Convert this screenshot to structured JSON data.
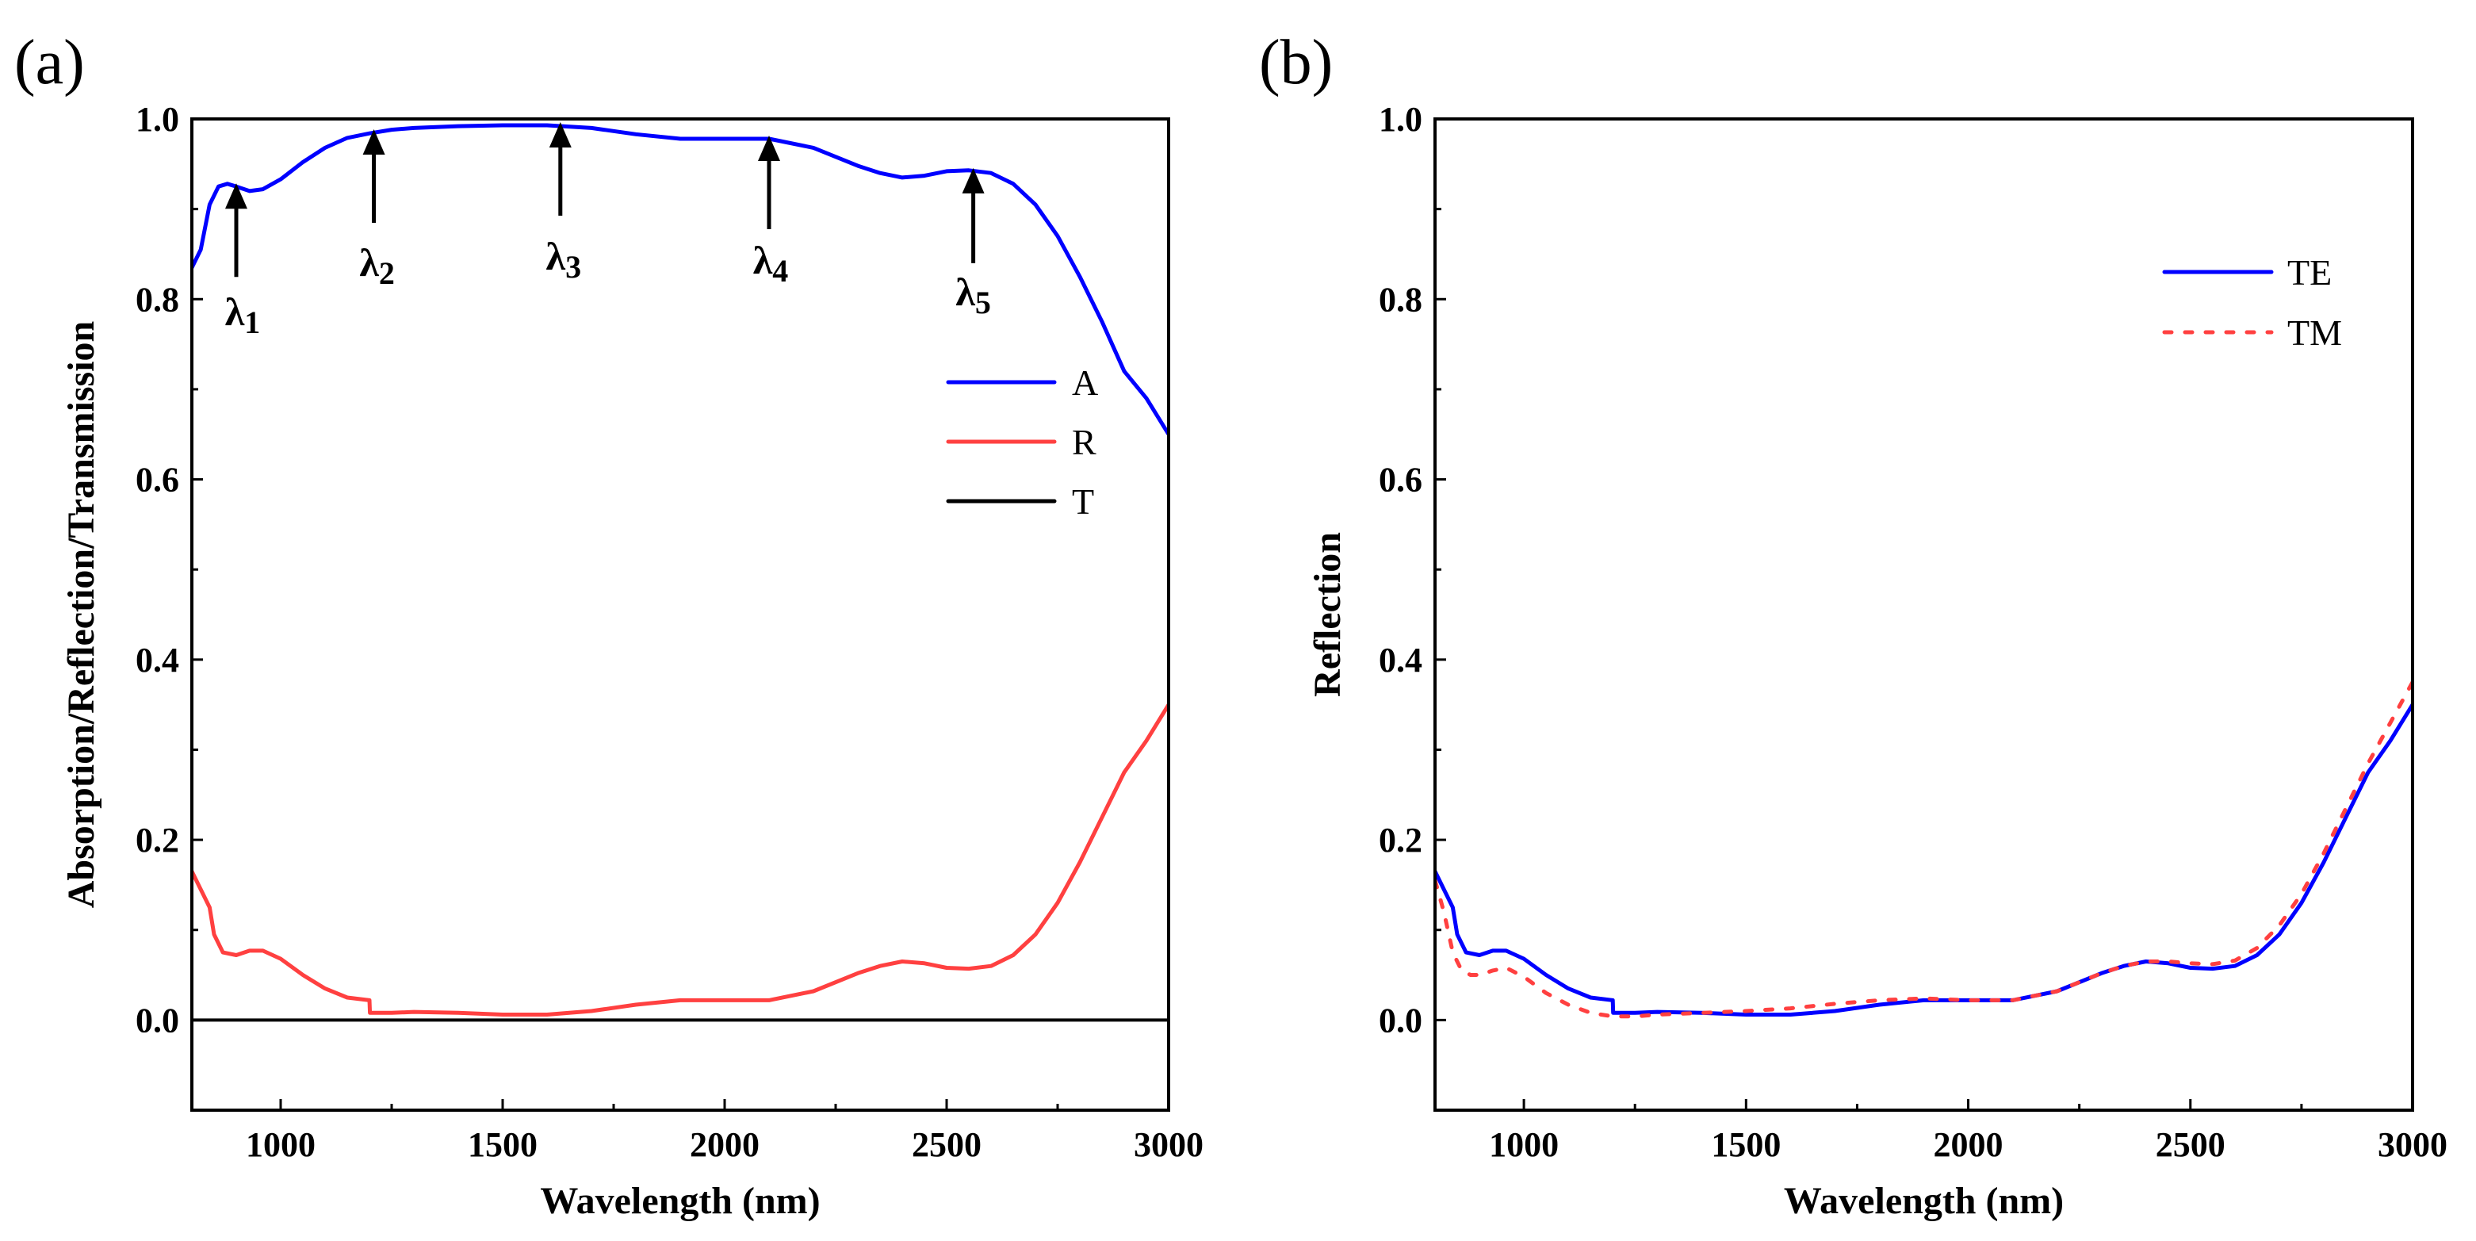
{
  "chart_data": [
    {
      "panel_label": "(a)",
      "type": "line",
      "xlabel": "Wavelength (nm)",
      "ylabel": "Absorption/Reflection/Transmission",
      "xlim": [
        800,
        3000
      ],
      "ylim": [
        -0.1,
        1.0
      ],
      "xticks": [
        1000,
        1500,
        2000,
        2500,
        3000
      ],
      "xtick_labels": [
        "1000",
        "1500",
        "2000",
        "2500",
        "3000"
      ],
      "yticks": [
        0.0,
        0.2,
        0.4,
        0.6,
        0.8,
        1.0
      ],
      "ytick_labels": [
        "0.0",
        "0.2",
        "0.4",
        "0.6",
        "0.8",
        "1.0"
      ],
      "grid": false,
      "legend_position": "center-right",
      "series": [
        {
          "name": "A",
          "color": "#0000ff",
          "style": "solid",
          "x": [
            800,
            820,
            840,
            860,
            880,
            900,
            930,
            960,
            1000,
            1050,
            1100,
            1150,
            1200,
            1250,
            1300,
            1400,
            1500,
            1600,
            1700,
            1800,
            1900,
            2000,
            2100,
            2200,
            2300,
            2350,
            2400,
            2450,
            2500,
            2550,
            2600,
            2650,
            2700,
            2750,
            2800,
            2850,
            2900,
            2950,
            3000
          ],
          "y": [
            0.835,
            0.855,
            0.905,
            0.925,
            0.928,
            0.925,
            0.92,
            0.922,
            0.933,
            0.952,
            0.968,
            0.979,
            0.984,
            0.988,
            0.99,
            0.992,
            0.993,
            0.993,
            0.99,
            0.983,
            0.978,
            0.978,
            0.978,
            0.968,
            0.948,
            0.94,
            0.935,
            0.937,
            0.942,
            0.943,
            0.94,
            0.928,
            0.905,
            0.87,
            0.825,
            0.775,
            0.72,
            0.69,
            0.65
          ]
        },
        {
          "name": "R",
          "color": "#ff4040",
          "style": "solid",
          "x": [
            800,
            820,
            840,
            850,
            870,
            900,
            930,
            960,
            1000,
            1050,
            1100,
            1150,
            1200,
            1201,
            1250,
            1300,
            1400,
            1500,
            1600,
            1700,
            1800,
            1900,
            2000,
            2100,
            2200,
            2300,
            2350,
            2400,
            2450,
            2500,
            2550,
            2600,
            2650,
            2700,
            2750,
            2800,
            2850,
            2900,
            2950,
            3000
          ],
          "y": [
            0.165,
            0.145,
            0.125,
            0.095,
            0.075,
            0.072,
            0.077,
            0.077,
            0.068,
            0.05,
            0.035,
            0.025,
            0.022,
            0.008,
            0.008,
            0.009,
            0.008,
            0.006,
            0.006,
            0.01,
            0.017,
            0.022,
            0.022,
            0.022,
            0.032,
            0.052,
            0.06,
            0.065,
            0.063,
            0.058,
            0.057,
            0.06,
            0.072,
            0.095,
            0.13,
            0.175,
            0.225,
            0.275,
            0.31,
            0.35
          ]
        },
        {
          "name": "T",
          "color": "#000000",
          "style": "solid",
          "x": [
            800,
            3000
          ],
          "y": [
            0.0,
            0.0
          ]
        }
      ],
      "annotations": [
        {
          "base": "λ",
          "sub": "1",
          "x": 900,
          "y": 0.925
        },
        {
          "base": "λ",
          "sub": "2",
          "x": 1210,
          "y": 0.985
        },
        {
          "base": "λ",
          "sub": "3",
          "x": 1630,
          "y": 0.993
        },
        {
          "base": "λ",
          "sub": "4",
          "x": 2100,
          "y": 0.978
        },
        {
          "base": "λ",
          "sub": "5",
          "x": 2560,
          "y": 0.942
        }
      ]
    },
    {
      "panel_label": "(b)",
      "type": "line",
      "xlabel": "Wavelength (nm)",
      "ylabel": "Reflection",
      "xlim": [
        800,
        3000
      ],
      "ylim": [
        -0.1,
        1.0
      ],
      "xticks": [
        1000,
        1500,
        2000,
        2500,
        3000
      ],
      "xtick_labels": [
        "1000",
        "1500",
        "2000",
        "2500",
        "3000"
      ],
      "yticks": [
        0.0,
        0.2,
        0.4,
        0.6,
        0.8,
        1.0
      ],
      "ytick_labels": [
        "0.0",
        "0.2",
        "0.4",
        "0.6",
        "0.8",
        "1.0"
      ],
      "grid": false,
      "legend_position": "top-right",
      "series": [
        {
          "name": "TE",
          "color": "#0000ff",
          "style": "solid",
          "x": [
            800,
            820,
            840,
            850,
            870,
            900,
            930,
            960,
            1000,
            1050,
            1100,
            1150,
            1200,
            1201,
            1250,
            1300,
            1400,
            1500,
            1600,
            1700,
            1800,
            1900,
            2000,
            2100,
            2200,
            2300,
            2350,
            2400,
            2450,
            2500,
            2550,
            2600,
            2650,
            2700,
            2750,
            2800,
            2850,
            2900,
            2950,
            3000
          ],
          "y": [
            0.165,
            0.145,
            0.125,
            0.095,
            0.075,
            0.072,
            0.077,
            0.077,
            0.068,
            0.05,
            0.035,
            0.025,
            0.022,
            0.008,
            0.008,
            0.009,
            0.008,
            0.006,
            0.006,
            0.01,
            0.017,
            0.022,
            0.022,
            0.022,
            0.032,
            0.052,
            0.06,
            0.065,
            0.063,
            0.058,
            0.057,
            0.06,
            0.072,
            0.095,
            0.13,
            0.175,
            0.225,
            0.275,
            0.31,
            0.35
          ]
        },
        {
          "name": "TM",
          "color": "#ff4040",
          "style": "dotted",
          "x": [
            800,
            820,
            840,
            860,
            880,
            900,
            930,
            960,
            1000,
            1050,
            1100,
            1150,
            1200,
            1250,
            1300,
            1400,
            1500,
            1600,
            1700,
            1800,
            1900,
            2000,
            2100,
            2200,
            2300,
            2350,
            2400,
            2450,
            2500,
            2550,
            2600,
            2650,
            2700,
            2750,
            2800,
            2850,
            2900,
            2950,
            3000
          ],
          "y": [
            0.155,
            0.12,
            0.075,
            0.055,
            0.05,
            0.05,
            0.055,
            0.058,
            0.048,
            0.03,
            0.017,
            0.008,
            0.004,
            0.004,
            0.006,
            0.008,
            0.01,
            0.013,
            0.018,
            0.022,
            0.024,
            0.022,
            0.022,
            0.032,
            0.052,
            0.06,
            0.065,
            0.065,
            0.063,
            0.062,
            0.066,
            0.08,
            0.105,
            0.14,
            0.185,
            0.235,
            0.285,
            0.33,
            0.375
          ]
        }
      ]
    }
  ]
}
